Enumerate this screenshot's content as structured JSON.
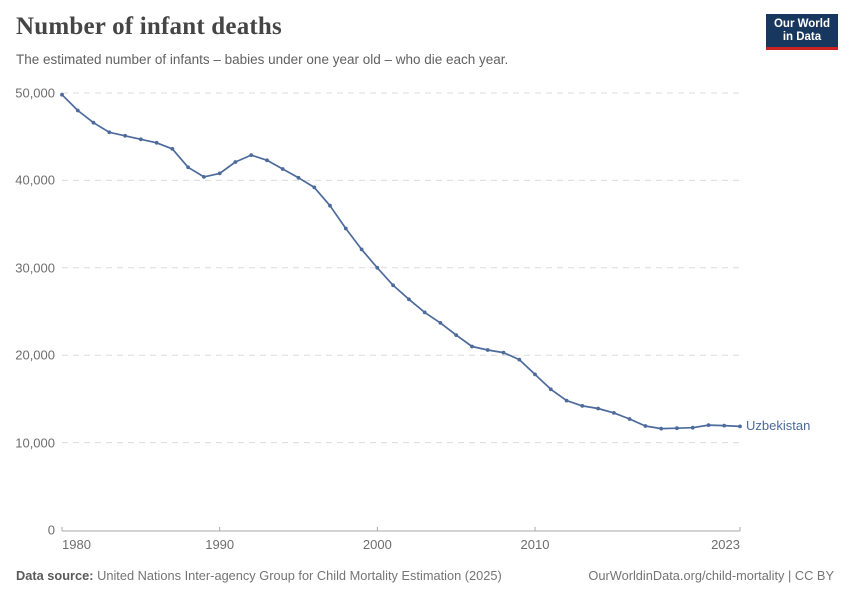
{
  "header": {
    "title": "Number of infant deaths",
    "subtitle": "The estimated number of infants – babies under one year old – who die each year.",
    "logo": {
      "line1": "Our World",
      "line2": "in Data",
      "bg_color": "#18375f",
      "bar_color": "#cc2222"
    }
  },
  "chart_data": {
    "type": "line",
    "title": "Number of infant deaths",
    "series_label": "Uzbekistan",
    "line_color": "#4c6a9c",
    "grid": true,
    "xlim": [
      1980,
      2023
    ],
    "ylim": [
      0,
      50000
    ],
    "xticks": [
      1980,
      1990,
      2000,
      2010,
      2023
    ],
    "xtick_labels": [
      "1980",
      "1990",
      "2000",
      "2010",
      "2023"
    ],
    "yticks": [
      0,
      10000,
      20000,
      30000,
      40000,
      50000
    ],
    "ytick_labels": [
      "0",
      "10,000",
      "20,000",
      "30,000",
      "40,000",
      "50,000"
    ],
    "x": [
      1980,
      1981,
      1982,
      1983,
      1984,
      1985,
      1986,
      1987,
      1988,
      1989,
      1990,
      1991,
      1992,
      1993,
      1994,
      1995,
      1996,
      1997,
      1998,
      1999,
      2000,
      2001,
      2002,
      2003,
      2004,
      2005,
      2006,
      2007,
      2008,
      2009,
      2010,
      2011,
      2012,
      2013,
      2014,
      2015,
      2016,
      2017,
      2018,
      2019,
      2020,
      2021,
      2022,
      2023
    ],
    "values": [
      49800,
      48000,
      46600,
      45500,
      45100,
      44700,
      44300,
      43600,
      41500,
      40400,
      40800,
      42100,
      42900,
      42300,
      41300,
      40300,
      39200,
      37100,
      34500,
      32100,
      30000,
      28000,
      26400,
      24900,
      23700,
      22300,
      21000,
      20600,
      20300,
      19500,
      17800,
      16100,
      14800,
      14200,
      13900,
      13400,
      12700,
      11900,
      11600,
      11650,
      11700,
      12000,
      11950,
      11850
    ]
  },
  "footer": {
    "source_label": "Data source:",
    "source_value": " United Nations Inter-agency Group for Child Mortality Estimation (2025)",
    "link": "OurWorldinData.org/child-mortality | CC BY"
  }
}
